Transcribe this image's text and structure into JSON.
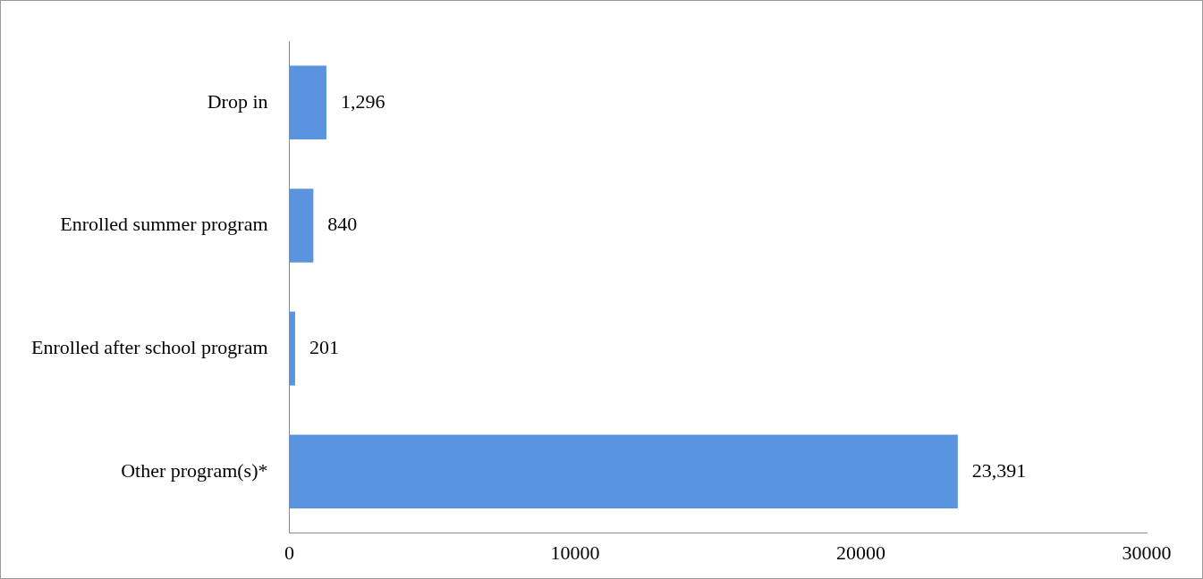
{
  "chart_data": {
    "type": "bar",
    "orientation": "horizontal",
    "categories": [
      "Drop in",
      "Enrolled summer program",
      "Enrolled after school program",
      "Other program(s)*"
    ],
    "values": [
      1296,
      840,
      201,
      23391
    ],
    "color": "#5a93de",
    "value_labels": [
      "1,296",
      "840",
      "201",
      "23,391"
    ],
    "xlim": [
      0,
      30000
    ],
    "xticks": [
      0,
      10000,
      20000,
      30000
    ],
    "grid": false,
    "legend": false
  }
}
